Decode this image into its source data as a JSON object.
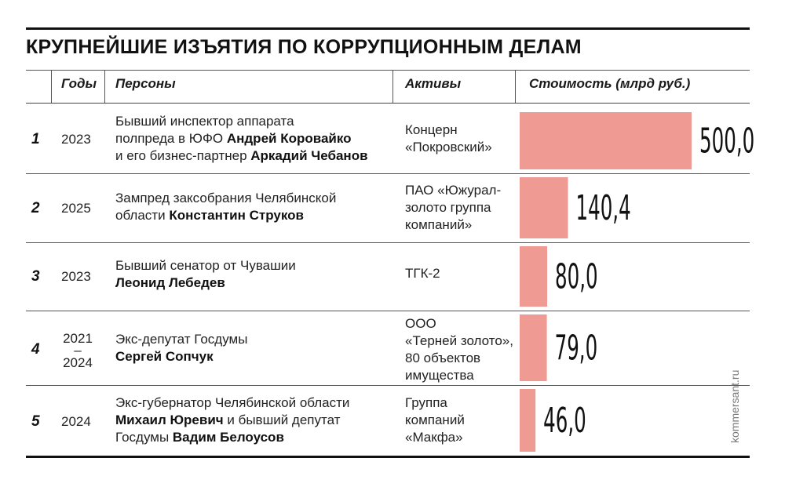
{
  "title": "КРУПНЕЙШИЕ ИЗЪЯТИЯ ПО КОРРУПЦИОННЫМ ДЕЛАМ",
  "headers": {
    "years": "Годы",
    "persons": "Персоны",
    "assets": "Активы",
    "value": "Стоимость (млрд руб.)"
  },
  "rows": [
    {
      "rank": "1",
      "year": "2023",
      "person_lines": [
        [
          {
            "t": "Бывший инспектор аппарата",
            "b": false
          }
        ],
        [
          {
            "t": "полпреда в ЮФО ",
            "b": false
          },
          {
            "t": "Андрей Коровайко",
            "b": true
          }
        ],
        [
          {
            "t": "и его бизнес-партнер ",
            "b": false
          },
          {
            "t": "Аркадий Чебанов",
            "b": true
          }
        ]
      ],
      "asset_lines": [
        "Концерн",
        "«Покровский»"
      ],
      "value_label": "500,0"
    },
    {
      "rank": "2",
      "year": "2025",
      "person_lines": [
        [
          {
            "t": "Зампред заксобрания Челябинской",
            "b": false
          }
        ],
        [
          {
            "t": "области ",
            "b": false
          },
          {
            "t": "Константин Струков",
            "b": true
          }
        ]
      ],
      "asset_lines": [
        "ПАО «Южурал-",
        "золото группа",
        "компаний»"
      ],
      "value_label": "140,4"
    },
    {
      "rank": "3",
      "year": "2023",
      "person_lines": [
        [
          {
            "t": "Бывший сенатор от Чувашии",
            "b": false
          }
        ],
        [
          {
            "t": "Леонид Лебедев",
            "b": true
          }
        ]
      ],
      "asset_lines": [
        "ТГК-2"
      ],
      "value_label": "80,0"
    },
    {
      "rank": "4",
      "year_from": "2021",
      "year_dash": "–",
      "year_to": "2024",
      "person_lines": [
        [
          {
            "t": "Экс-депутат Госдумы",
            "b": false
          }
        ],
        [
          {
            "t": "Сергей Сопчук",
            "b": true
          }
        ]
      ],
      "asset_lines": [
        "ООО",
        "«Терней золото»,",
        "80 объектов",
        "имущества"
      ],
      "value_label": "79,0"
    },
    {
      "rank": "5",
      "year": "2024",
      "person_lines": [
        [
          {
            "t": "Экс-губернатор Челябинской области",
            "b": false
          }
        ],
        [
          {
            "t": "Михаил Юревич",
            "b": true
          },
          {
            "t": " и бывший депутат",
            "b": false
          }
        ],
        [
          {
            "t": "Госдумы ",
            "b": false
          },
          {
            "t": "Вадим Белоусов",
            "b": true
          }
        ]
      ],
      "asset_lines": [
        "Группа",
        "компаний",
        "«Макфа»"
      ],
      "value_label": "46,0"
    }
  ],
  "chart_data": {
    "type": "bar",
    "orientation": "horizontal",
    "title": "КРУПНЕЙШИЕ ИЗЪЯТИЯ ПО КОРРУПЦИОННЫМ ДЕЛАМ",
    "ylabel": "Стоимость (млрд руб.)",
    "categories": [
      "Андрей Коровайко и Аркадий Чебанов",
      "Константин Струков",
      "Леонид Лебедев",
      "Сергей Сопчук",
      "Михаил Юревич и Вадим Белоусов"
    ],
    "values": [
      500.0,
      140.4,
      80.0,
      79.0,
      46.0
    ],
    "labels": [
      "500,0",
      "140,4",
      "80,0",
      "79,0",
      "46,0"
    ],
    "bar_color": "#ef9a92",
    "xlim": [
      0,
      500
    ]
  },
  "credit": "kommersant.ru"
}
